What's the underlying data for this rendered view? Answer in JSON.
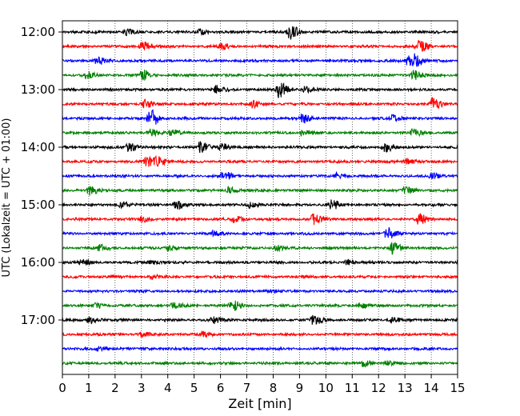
{
  "chart_data": {
    "type": "line",
    "xlabel": "Zeit  [min]",
    "ylabel": "UTC (Lokalzeit = UTC + 01:00)",
    "xlim": [
      0,
      15
    ],
    "x_ticks": [
      0,
      1,
      2,
      3,
      4,
      5,
      6,
      7,
      8,
      9,
      10,
      11,
      12,
      13,
      14,
      15
    ],
    "y_tick_labels": [
      "12:00",
      "13:00",
      "14:00",
      "15:00",
      "16:00",
      "17:00"
    ],
    "grid": "vertical dotted",
    "trace_interval_minutes": 15,
    "trace_count": 24,
    "trace_colors": [
      "#000000",
      "#ff0000",
      "#0000ff",
      "#008000"
    ],
    "series": [
      {
        "start": "12:00",
        "events": [
          [
            8.6,
            1.0
          ],
          [
            2.4,
            0.35
          ],
          [
            5.2,
            0.35
          ]
        ]
      },
      {
        "start": "12:15",
        "events": [
          [
            3.0,
            0.7
          ],
          [
            13.5,
            0.9
          ],
          [
            6.0,
            0.3
          ]
        ]
      },
      {
        "start": "12:30",
        "events": [
          [
            1.3,
            0.45
          ],
          [
            13.1,
            0.7
          ],
          [
            13.4,
            0.6
          ]
        ]
      },
      {
        "start": "12:45",
        "events": [
          [
            3.0,
            0.7
          ],
          [
            0.9,
            0.4
          ],
          [
            13.3,
            0.6
          ]
        ]
      },
      {
        "start": "13:00",
        "events": [
          [
            8.2,
            1.0
          ],
          [
            5.8,
            0.5
          ],
          [
            9.2,
            0.35
          ]
        ]
      },
      {
        "start": "13:15",
        "events": [
          [
            3.1,
            0.6
          ],
          [
            7.2,
            0.45
          ],
          [
            14.0,
            0.8
          ]
        ]
      },
      {
        "start": "13:30",
        "events": [
          [
            3.3,
            1.2
          ],
          [
            9.1,
            0.6
          ],
          [
            12.5,
            0.4
          ]
        ]
      },
      {
        "start": "13:45",
        "events": [
          [
            3.3,
            0.5
          ],
          [
            4.1,
            0.4
          ],
          [
            9.1,
            0.35
          ],
          [
            13.3,
            0.45
          ]
        ]
      },
      {
        "start": "14:00",
        "events": [
          [
            2.5,
            0.6
          ],
          [
            5.2,
            0.8
          ],
          [
            6.0,
            0.5
          ],
          [
            12.2,
            0.6
          ]
        ]
      },
      {
        "start": "14:15",
        "events": [
          [
            3.2,
            0.7
          ],
          [
            3.6,
            0.5
          ],
          [
            13.0,
            0.4
          ]
        ]
      },
      {
        "start": "14:30",
        "events": [
          [
            6.1,
            0.55
          ],
          [
            10.4,
            0.45
          ],
          [
            14.0,
            0.45
          ]
        ]
      },
      {
        "start": "14:45",
        "events": [
          [
            1.0,
            0.6
          ],
          [
            6.3,
            0.4
          ],
          [
            13.0,
            0.45
          ]
        ]
      },
      {
        "start": "15:00",
        "events": [
          [
            10.2,
            0.7
          ],
          [
            4.3,
            0.5
          ],
          [
            2.2,
            0.4
          ],
          [
            7.1,
            0.35
          ]
        ]
      },
      {
        "start": "15:15",
        "events": [
          [
            9.5,
            0.7
          ],
          [
            13.5,
            0.7
          ],
          [
            3.0,
            0.35
          ],
          [
            6.5,
            0.35
          ]
        ]
      },
      {
        "start": "15:30",
        "events": [
          [
            12.3,
            0.8
          ],
          [
            5.7,
            0.3
          ]
        ]
      },
      {
        "start": "15:45",
        "events": [
          [
            1.4,
            0.45
          ],
          [
            12.5,
            0.7
          ],
          [
            4.0,
            0.3
          ],
          [
            8.1,
            0.3
          ]
        ]
      },
      {
        "start": "16:00",
        "events": [
          [
            0.7,
            0.35
          ],
          [
            10.8,
            0.35
          ],
          [
            3.3,
            0.25
          ]
        ]
      },
      {
        "start": "16:15",
        "events": [
          [
            3.4,
            0.2
          ]
        ]
      },
      {
        "start": "16:30",
        "events": [
          [
            7.8,
            0.25
          ]
        ]
      },
      {
        "start": "16:45",
        "events": [
          [
            6.4,
            0.7
          ],
          [
            4.2,
            0.4
          ],
          [
            11.3,
            0.35
          ],
          [
            1.2,
            0.3
          ]
        ]
      },
      {
        "start": "17:00",
        "events": [
          [
            9.5,
            0.6
          ],
          [
            5.7,
            0.4
          ],
          [
            1.0,
            0.4
          ],
          [
            12.5,
            0.35
          ]
        ]
      },
      {
        "start": "17:15",
        "events": [
          [
            5.3,
            0.35
          ],
          [
            3.0,
            0.25
          ]
        ]
      },
      {
        "start": "17:30",
        "events": [
          [
            1.4,
            0.35
          ]
        ]
      },
      {
        "start": "17:45",
        "events": [
          [
            11.4,
            0.45
          ],
          [
            12.3,
            0.3
          ]
        ]
      }
    ]
  }
}
